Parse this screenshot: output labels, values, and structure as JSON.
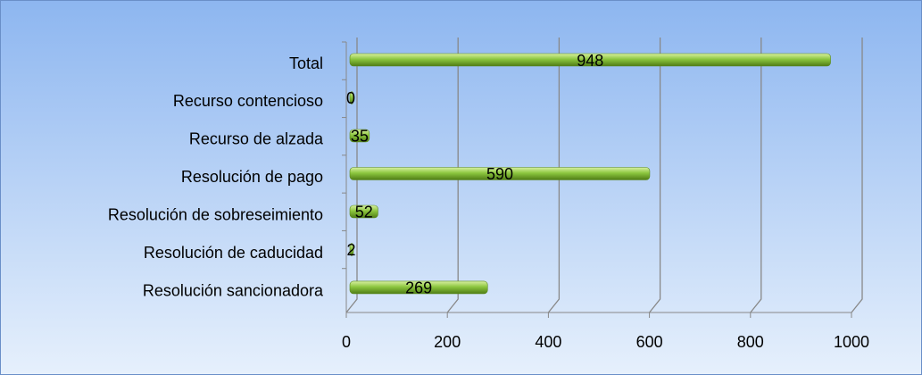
{
  "chart_data": {
    "type": "bar",
    "orientation": "horizontal",
    "categories": [
      "Total",
      "Recurso contencioso",
      "Recurso de alzada",
      "Resolución de pago",
      "Resolución de sobreseimiento",
      "Resolución de caducidad",
      "Resolución sancionadora"
    ],
    "values": [
      948,
      0,
      35,
      590,
      52,
      2,
      269
    ],
    "color": "#8cc63f",
    "xlim": [
      0,
      1000
    ],
    "xticks": [
      0,
      200,
      400,
      600,
      800,
      1000
    ],
    "grid": true
  }
}
